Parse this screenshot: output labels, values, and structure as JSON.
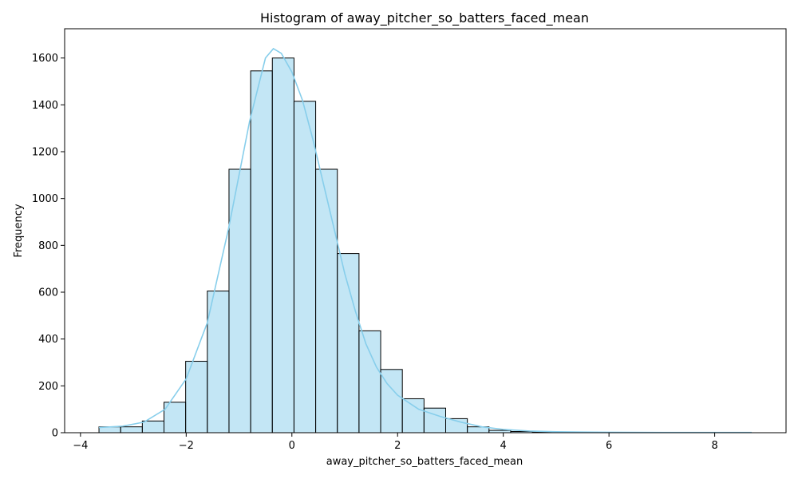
{
  "chart_data": {
    "type": "bar",
    "title": "Histogram of away_pitcher_so_batters_faced_mean",
    "xlabel": "away_pitcher_so_batters_faced_mean",
    "ylabel": "Frequency",
    "xlim": [
      -4.3,
      9.35
    ],
    "ylim": [
      0,
      1725
    ],
    "xticks": [
      -4,
      -2,
      0,
      2,
      4,
      6,
      8
    ],
    "yticks": [
      0,
      200,
      400,
      600,
      800,
      1000,
      1200,
      1400,
      1600
    ],
    "bin_edges": [
      -3.65,
      -3.24,
      -2.83,
      -2.42,
      -2.01,
      -1.6,
      -1.19,
      -0.78,
      -0.37,
      0.04,
      0.45,
      0.86,
      1.27,
      1.68,
      2.09,
      2.5,
      2.91,
      3.32,
      3.73,
      4.14,
      4.55,
      4.96,
      5.37,
      5.78,
      6.19,
      6.6,
      7.01,
      7.42,
      7.83,
      8.24,
      8.65
    ],
    "values": [
      25,
      25,
      50,
      130,
      305,
      605,
      1125,
      1545,
      1600,
      1415,
      1125,
      765,
      435,
      270,
      145,
      105,
      60,
      25,
      10,
      5,
      3,
      3,
      2,
      1,
      1,
      1,
      1,
      1,
      1,
      1
    ],
    "bar_color": "#87CEEB",
    "bar_alpha": 0.5,
    "edge_color": "#000000",
    "kde": {
      "color": "#87CEEB",
      "x": [
        -3.65,
        -3.2,
        -2.8,
        -2.4,
        -2.0,
        -1.6,
        -1.2,
        -0.8,
        -0.5,
        -0.35,
        -0.2,
        0.0,
        0.2,
        0.4,
        0.6,
        0.8,
        1.0,
        1.2,
        1.4,
        1.6,
        1.8,
        2.0,
        2.4,
        2.8,
        3.2,
        3.6,
        4.0,
        4.5,
        5.0,
        5.5,
        6.0,
        7.0,
        8.0,
        8.7
      ],
      "y": [
        22,
        28,
        45,
        100,
        230,
        470,
        870,
        1330,
        1600,
        1640,
        1620,
        1540,
        1420,
        1250,
        1060,
        870,
        680,
        520,
        380,
        280,
        210,
        160,
        100,
        70,
        45,
        25,
        14,
        7,
        4,
        3,
        2,
        1,
        1,
        1
      ]
    },
    "grid": false,
    "legend": "none"
  }
}
